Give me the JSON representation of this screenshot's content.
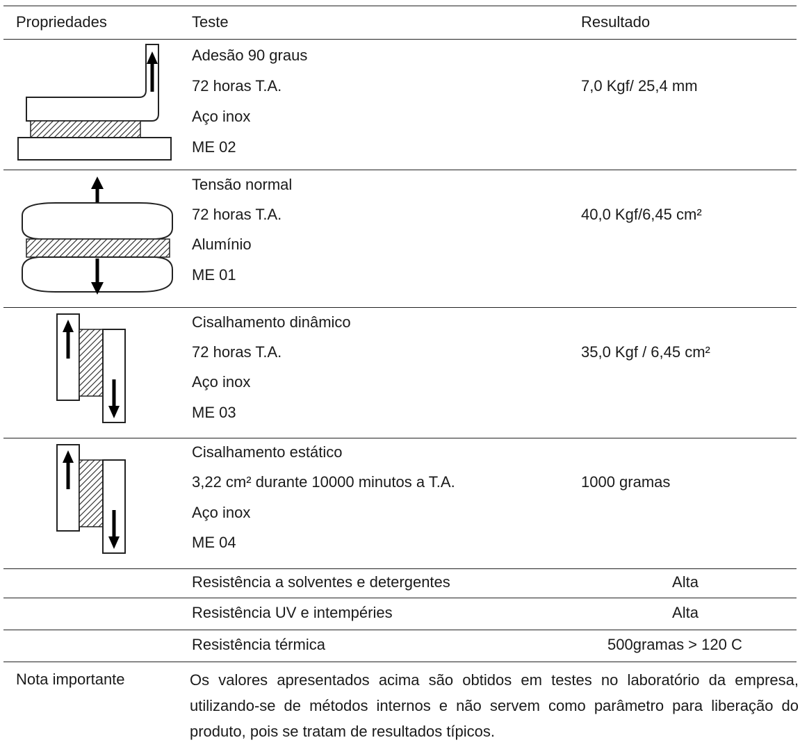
{
  "header": {
    "col1": "Propriedades",
    "col2": "Teste",
    "col3": "Resultado"
  },
  "rows": [
    {
      "icon": "adhesion-90-icon",
      "lines": [
        "Adesão 90 graus",
        "72 horas T.A.",
        "Aço inox",
        "ME 02"
      ],
      "result": "7,0 Kgf/ 25,4 mm"
    },
    {
      "icon": "normal-tension-icon",
      "lines": [
        "Tensão normal",
        "72 horas T.A.",
        "Alumínio",
        "ME 01"
      ],
      "result": "40,0 Kgf/6,45 cm²"
    },
    {
      "icon": "dynamic-shear-icon",
      "lines": [
        "Cisalhamento dinâmico",
        "72 horas T.A.",
        "Aço inox",
        "ME 03"
      ],
      "result": "35,0 Kgf / 6,45 cm²"
    },
    {
      "icon": "static-shear-icon",
      "lines": [
        "Cisalhamento estático",
        "3,22 cm² durante 10000 minutos a T.A.",
        "Aço inox",
        "ME 04"
      ],
      "result": "1000 gramas"
    }
  ],
  "simple_rows": [
    {
      "test": "Resistência a solventes e detergentes",
      "result": "Alta"
    },
    {
      "test": "Resistência UV e intempéries",
      "result": "Alta"
    },
    {
      "test": "Resistência térmica",
      "result": "500gramas > 120 C"
    }
  ],
  "note": {
    "label": "Nota importante",
    "text": "Os valores apresentados acima são obtidos em testes no laboratório da empresa, utilizando-se de métodos internos e não servem como parâmetro para liberação do produto, pois se tratam de resultados típicos."
  }
}
